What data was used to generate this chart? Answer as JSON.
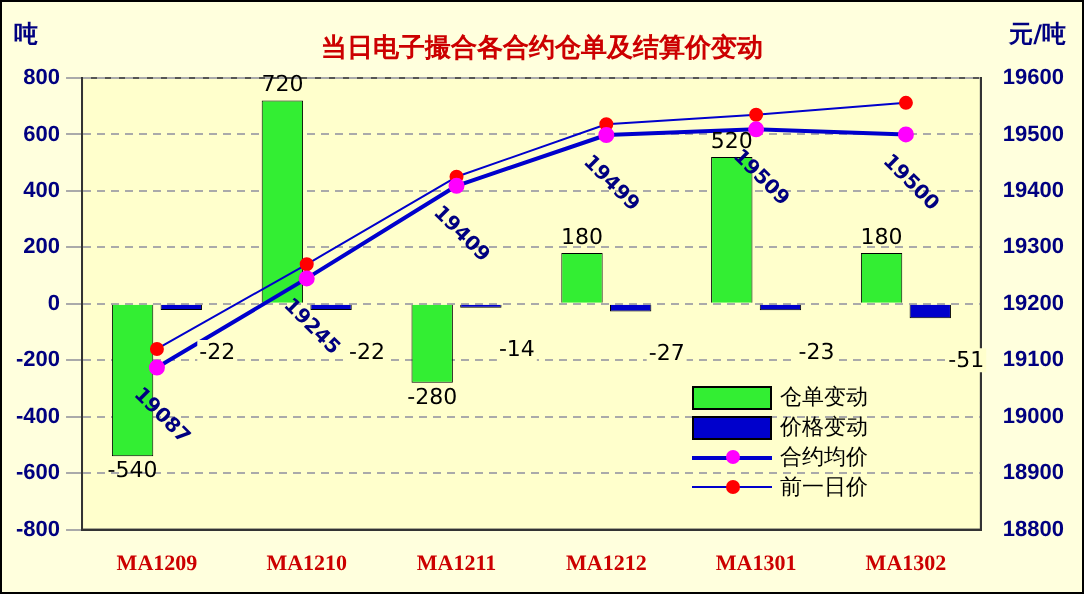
{
  "chart_data": {
    "type": "bar",
    "title": "当日电子撮合各合约仓单及结算价变动",
    "ylabel": "吨",
    "y2label": "元/吨",
    "categories": [
      "MA1209",
      "MA1210",
      "MA1211",
      "MA1212",
      "MA1301",
      "MA1302"
    ],
    "series": [
      {
        "name": "仓单变动",
        "color": "#33ee33",
        "values": [
          -540,
          720,
          -280,
          180,
          520,
          180
        ],
        "value_labels": [
          "-540",
          "720",
          "-280",
          "180",
          "520",
          "180"
        ]
      },
      {
        "name": "价格变动",
        "color": "#0000cc",
        "values": [
          -22,
          -22,
          -14,
          -27,
          -23,
          -51
        ],
        "value_labels": [
          "-22",
          "-22",
          "-14",
          "-27",
          "-23",
          "-51"
        ]
      },
      {
        "name": "合约均价",
        "type": "line",
        "axis": "y2",
        "color": "#0000cc",
        "colors": [
          "#ff00ff",
          "#ff00ff",
          "#ff00ff",
          "#ff00ff",
          "#ff00ff",
          "#ff00ff"
        ],
        "values": [
          19087,
          19245,
          19409,
          19499,
          19509,
          19500
        ],
        "value_labels": [
          "19087",
          "19245",
          "19409",
          "19499",
          "19509",
          "19500"
        ]
      },
      {
        "name": "前一日价",
        "type": "line",
        "axis": "y2",
        "color": "#0000cc",
        "colors": [
          "#ff0000",
          "#ff0000",
          "#ff0000",
          "#ff0000",
          "#ff0000",
          "#ff0000"
        ],
        "values": [
          19120,
          19270,
          19425,
          19518,
          19535,
          19556
        ]
      }
    ],
    "ylim": [
      -800,
      800
    ],
    "yticks": [
      -800,
      -600,
      -400,
      -200,
      0,
      200,
      400,
      600,
      800
    ],
    "y2lim": [
      18800,
      19600
    ],
    "y2ticks": [
      18800,
      18900,
      19000,
      19100,
      19200,
      19300,
      19400,
      19500,
      19600
    ],
    "grid": "y",
    "legend": "bottom right",
    "marker": "circle"
  }
}
